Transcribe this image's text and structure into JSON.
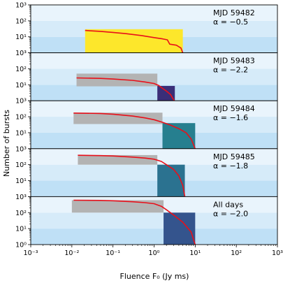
{
  "chart_data": {
    "type": "area",
    "layout": "5 vertically stacked panels sharing a log x-axis",
    "xlabel": "Fluence F₀ (Jy ms)",
    "ylabel": "Number of bursts",
    "xscale": "log",
    "yscale": "log",
    "xlim": [
      0.001,
      1000
    ],
    "ylim": [
      1,
      1000
    ],
    "xticks": [
      0.001,
      0.01,
      0.1,
      1,
      10,
      100,
      1000
    ],
    "xtick_labels": [
      "10⁻³",
      "10⁻²",
      "10⁻¹",
      "10⁰",
      "10¹",
      "10²",
      "10³"
    ],
    "yticks": [
      1,
      10,
      100,
      1000
    ],
    "ytick_labels": [
      "10⁰",
      "10¹",
      "10²",
      "10³"
    ],
    "background_bands_colors": [
      "#bfe0f6",
      "#d6ebf9",
      "#e9f4fc"
    ],
    "curve_color": "#e8101a",
    "panels": [
      {
        "label": "MJD 59482",
        "alpha_text": "α = −0.5",
        "curve": [
          [
            0.021,
            25
          ],
          [
            0.05,
            22
          ],
          [
            0.1,
            19
          ],
          [
            0.2,
            16
          ],
          [
            0.5,
            12
          ],
          [
            1,
            9
          ],
          [
            1.6,
            7.5
          ],
          [
            2.1,
            6.5
          ],
          [
            2.4,
            3.5
          ],
          [
            3.5,
            3
          ],
          [
            4.5,
            2
          ],
          [
            5.0,
            1
          ]
        ],
        "gray_box": null,
        "fit_box": {
          "x": [
            0.021,
            5.0
          ],
          "y": [
            1,
            30
          ],
          "color": "#fde72b"
        }
      },
      {
        "label": "MJD 59483",
        "alpha_text": "α = −2.2",
        "curve": [
          [
            0.013,
            27
          ],
          [
            0.05,
            25
          ],
          [
            0.1,
            23
          ],
          [
            0.3,
            19
          ],
          [
            0.6,
            15
          ],
          [
            1.0,
            12
          ],
          [
            1.3,
            9
          ],
          [
            1.6,
            6
          ],
          [
            2.0,
            4
          ],
          [
            2.5,
            2.5
          ],
          [
            3.1,
            1
          ]
        ],
        "gray_box": {
          "x": [
            0.013,
            1.2
          ],
          "y": [
            8,
            50
          ],
          "color": "#b3b3b3"
        },
        "fit_box": {
          "x": [
            1.2,
            3.2
          ],
          "y": [
            1,
            8.5
          ],
          "color": "#3a2e78"
        }
      },
      {
        "label": "MJD 59484",
        "alpha_text": "α = −1.6",
        "curve": [
          [
            0.011,
            170
          ],
          [
            0.05,
            160
          ],
          [
            0.1,
            145
          ],
          [
            0.3,
            110
          ],
          [
            0.6,
            85
          ],
          [
            1.0,
            65
          ],
          [
            1.6,
            45
          ],
          [
            2.5,
            30
          ],
          [
            4,
            18
          ],
          [
            6,
            10
          ],
          [
            8,
            4
          ],
          [
            10,
            1
          ]
        ],
        "gray_box": {
          "x": [
            0.011,
            1.6
          ],
          "y": [
            35,
            180
          ],
          "color": "#b3b3b3"
        },
        "fit_box": {
          "x": [
            1.6,
            10
          ],
          "y": [
            1,
            40
          ],
          "color": "#267f8f"
        }
      },
      {
        "label": "MJD 59485",
        "alpha_text": "α = −1.8",
        "curve": [
          [
            0.014,
            390
          ],
          [
            0.05,
            370
          ],
          [
            0.1,
            350
          ],
          [
            0.3,
            300
          ],
          [
            0.6,
            260
          ],
          [
            1.0,
            220
          ],
          [
            1.5,
            160
          ],
          [
            2.0,
            100
          ],
          [
            3,
            50
          ],
          [
            4,
            20
          ],
          [
            5,
            5
          ],
          [
            5.6,
            1
          ]
        ],
        "gray_box": {
          "x": [
            0.014,
            1.2
          ],
          "y": [
            100,
            400
          ],
          "color": "#b3b3b3"
        },
        "fit_box": {
          "x": [
            1.2,
            5.6
          ],
          "y": [
            1,
            100
          ],
          "color": "#2b7290"
        }
      },
      {
        "label": "All days",
        "alpha_text": "α = −2.0",
        "curve": [
          [
            0.011,
            600
          ],
          [
            0.05,
            580
          ],
          [
            0.1,
            550
          ],
          [
            0.3,
            480
          ],
          [
            0.6,
            420
          ],
          [
            1.0,
            360
          ],
          [
            1.5,
            250
          ],
          [
            2.0,
            150
          ],
          [
            3,
            70
          ],
          [
            5,
            25
          ],
          [
            8,
            6
          ],
          [
            10,
            1
          ]
        ],
        "gray_box": {
          "x": [
            0.01,
            1.7
          ],
          "y": [
            100,
            600
          ],
          "color": "#b3b3b3"
        },
        "fit_box": {
          "x": [
            1.7,
            10
          ],
          "y": [
            1,
            100
          ],
          "color": "#34548d"
        }
      }
    ]
  }
}
